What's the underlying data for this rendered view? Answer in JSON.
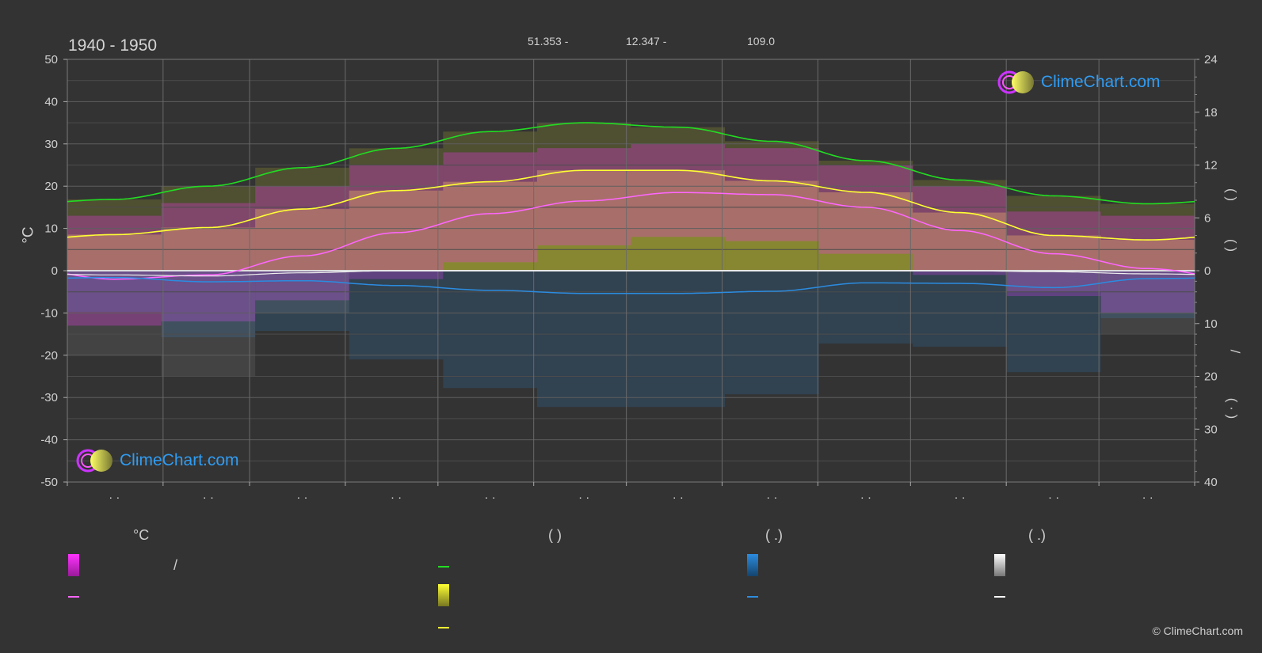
{
  "header": {
    "period": "1940 - 1950",
    "lat": "51.353 -",
    "lon": "12.347 -",
    "elevation": "109.0"
  },
  "axes": {
    "left_unit": "°C",
    "right_paren_top": "(   )",
    "right_paren_mid": "(   )",
    "right_slash": "/",
    "right_paren_bot": "(  ·  )"
  },
  "logo": {
    "text": "ClimeChart.com"
  },
  "legend": {
    "temp_header": "°C",
    "sun_header": "(          )",
    "rain_header": "(    .)",
    "snow_header": "(    .)",
    "slash": "/"
  },
  "copyright": "© ClimeChart.com",
  "colors": {
    "background": "#333333",
    "daylight": "#22dd22",
    "sunshine": "#ffff33",
    "temp_mean": "#ff66ff",
    "temp_range": "#ff33ff",
    "rain": "#2b8ce0",
    "snow": "#ffffff"
  },
  "chart_data": {
    "type": "area",
    "y_left": {
      "ticks": [
        50,
        40,
        30,
        20,
        10,
        0,
        -10,
        -20,
        -30,
        -40,
        -50
      ],
      "ylim": [
        -50,
        50
      ]
    },
    "y_right_top": {
      "ticks": [
        24,
        18,
        12,
        6,
        0
      ],
      "ylim": [
        0,
        24
      ]
    },
    "y_right_bottom": {
      "ticks": [
        0,
        10,
        20,
        30,
        40
      ],
      "ylim": [
        0,
        40
      ]
    },
    "x_tick_labels": [
      "· ·",
      "· ·",
      "· ·",
      "· ·",
      "· ·",
      "· ·",
      "· ·",
      "· ·",
      "· ·",
      "· ·",
      "· ·",
      "· ·"
    ],
    "series": [
      {
        "key": "daylight",
        "values": [
          8.1,
          9.6,
          11.7,
          13.9,
          15.8,
          16.8,
          16.3,
          14.7,
          12.5,
          10.3,
          8.5,
          7.6
        ]
      },
      {
        "key": "sunshine",
        "values": [
          4.1,
          4.9,
          7.0,
          9.1,
          10.1,
          11.4,
          11.4,
          10.2,
          8.9,
          6.6,
          4.0,
          3.5
        ]
      },
      {
        "key": "temp_mean",
        "values": [
          -2.0,
          -1.0,
          3.5,
          9.0,
          13.5,
          16.5,
          18.5,
          18.0,
          15.0,
          9.5,
          4.0,
          0.5
        ]
      },
      {
        "key": "temp_max",
        "values": [
          13,
          16,
          20,
          25,
          28,
          29,
          30,
          29,
          25,
          20,
          14,
          13
        ]
      },
      {
        "key": "temp_min",
        "values": [
          -13,
          -12,
          -7,
          -2,
          2,
          6,
          8,
          7,
          4,
          -1,
          -6,
          -10
        ]
      },
      {
        "key": "rain_mm",
        "values": [
          1.3,
          2.1,
          1.9,
          2.8,
          3.7,
          4.3,
          4.3,
          3.9,
          2.3,
          2.4,
          3.2,
          1.5
        ]
      },
      {
        "key": "snow_mm",
        "values": [
          0.4,
          0.5,
          0.2,
          0.0,
          0.0,
          0.0,
          0.0,
          0.0,
          0.0,
          0.0,
          0.1,
          0.3
        ]
      }
    ]
  }
}
